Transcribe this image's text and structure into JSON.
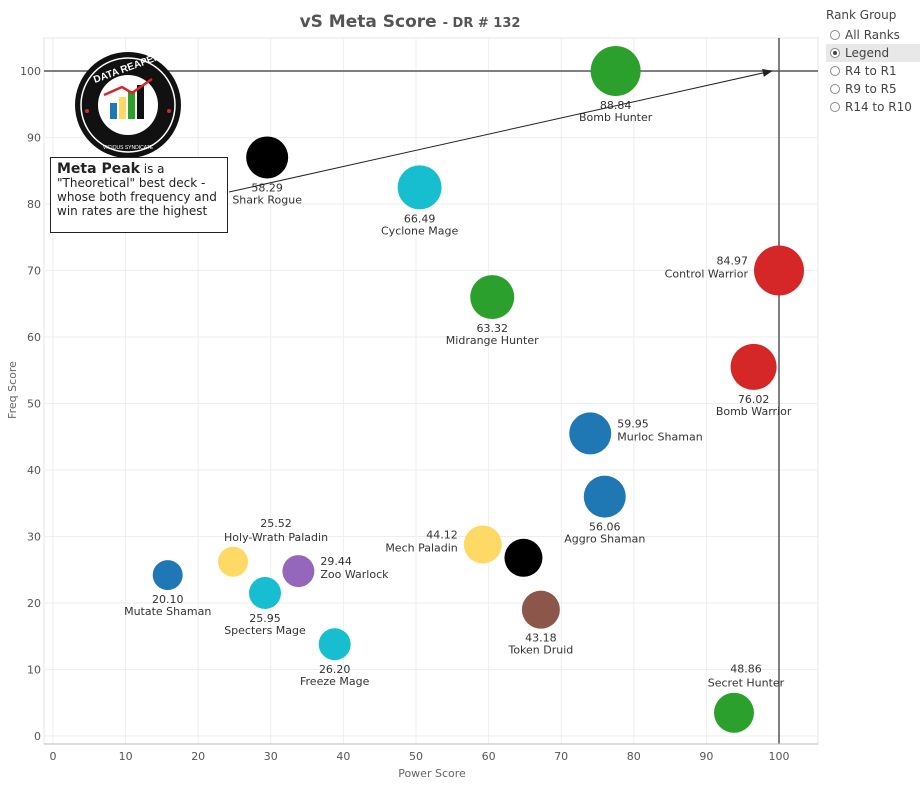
{
  "title": "vS Meta Score",
  "subtitle": "- DR # 132",
  "rank_group": {
    "header": "Rank Group",
    "options": [
      "All Ranks",
      "Legend",
      "R4 to R1",
      "R9 to R5",
      "R14 to R10"
    ],
    "selected": "Legend"
  },
  "note": {
    "bold": "Meta Peak",
    "text": " is a \"Theoretical\" best deck - whose both frequency and win rates are the highest"
  },
  "logo": {
    "top_text": "DATA REAPER REPORT",
    "bottom_text": "VICIOUS SYNDICATE PRESENTS"
  },
  "chart_data": {
    "type": "scatter",
    "title": "vS Meta Score - DR # 132",
    "xlabel": "Power Score",
    "ylabel": "Freq Score",
    "xlim": [
      0,
      105
    ],
    "ylim": [
      0,
      105
    ],
    "xticks": [
      0,
      10,
      20,
      30,
      40,
      50,
      60,
      70,
      80,
      90,
      100
    ],
    "yticks": [
      0,
      10,
      20,
      30,
      40,
      50,
      60,
      70,
      80,
      90,
      100
    ],
    "grid": true,
    "reference_lines": {
      "x": 100,
      "y": 100
    },
    "points": [
      {
        "name": "Bomb Hunter",
        "value": "88.84",
        "x": 77.5,
        "y": 100,
        "color": "#2ca02c",
        "r": 25
      },
      {
        "name": "Shark Rogue",
        "value": "58.29",
        "x": 29.5,
        "y": 87,
        "color": "#000000",
        "r": 21
      },
      {
        "name": "Cyclone Mage",
        "value": "66.49",
        "x": 50.5,
        "y": 82.5,
        "color": "#17becf",
        "r": 22
      },
      {
        "name": "Control Warrior",
        "value": "84.97",
        "x": 100,
        "y": 70,
        "color": "#d62728",
        "r": 25
      },
      {
        "name": "Midrange Hunter",
        "value": "63.32",
        "x": 60.5,
        "y": 66,
        "color": "#2ca02c",
        "r": 22
      },
      {
        "name": "Bomb Warrior",
        "value": "76.02",
        "x": 96.5,
        "y": 55.5,
        "color": "#d62728",
        "r": 23
      },
      {
        "name": "Murloc Shaman",
        "value": "59.95",
        "x": 74,
        "y": 45.5,
        "color": "#1f77b4",
        "r": 21
      },
      {
        "name": "Aggro Shaman",
        "value": "56.06",
        "x": 76,
        "y": 36,
        "color": "#1f77b4",
        "r": 21
      },
      {
        "name": "Holy-Wrath Paladin",
        "value": "25.52",
        "x": 24.8,
        "y": 26.2,
        "color": "#ffd966",
        "r": 15
      },
      {
        "name": "Zoo Warlock",
        "value": "29.44",
        "x": 33.8,
        "y": 24.8,
        "color": "#9467bd",
        "r": 16
      },
      {
        "name": "Mutate Shaman",
        "value": "20.10",
        "x": 15.8,
        "y": 24.2,
        "color": "#1f77b4",
        "r": 15
      },
      {
        "name": "Specters Mage",
        "value": "25.95",
        "x": 29.2,
        "y": 21.5,
        "color": "#17becf",
        "r": 16
      },
      {
        "name": "Freeze Mage",
        "value": "26.20",
        "x": 38.8,
        "y": 13.8,
        "color": "#17becf",
        "r": 16
      },
      {
        "name": "Mech Paladin",
        "value": "44.12",
        "x": 59.2,
        "y": 28.8,
        "color": "#ffd966",
        "r": 19
      },
      {
        "name": "",
        "value": "",
        "x": 64.8,
        "y": 26.8,
        "color": "#000000",
        "r": 19
      },
      {
        "name": "Token Druid",
        "value": "43.18",
        "x": 67.2,
        "y": 19,
        "color": "#8c564b",
        "r": 19
      },
      {
        "name": "Secret Hunter",
        "value": "48.86",
        "x": 93.8,
        "y": 3.5,
        "color": "#2ca02c",
        "r": 20
      }
    ],
    "annotation_arrow": {
      "from": [
        24,
        80
      ],
      "to": [
        99,
        100
      ]
    }
  }
}
